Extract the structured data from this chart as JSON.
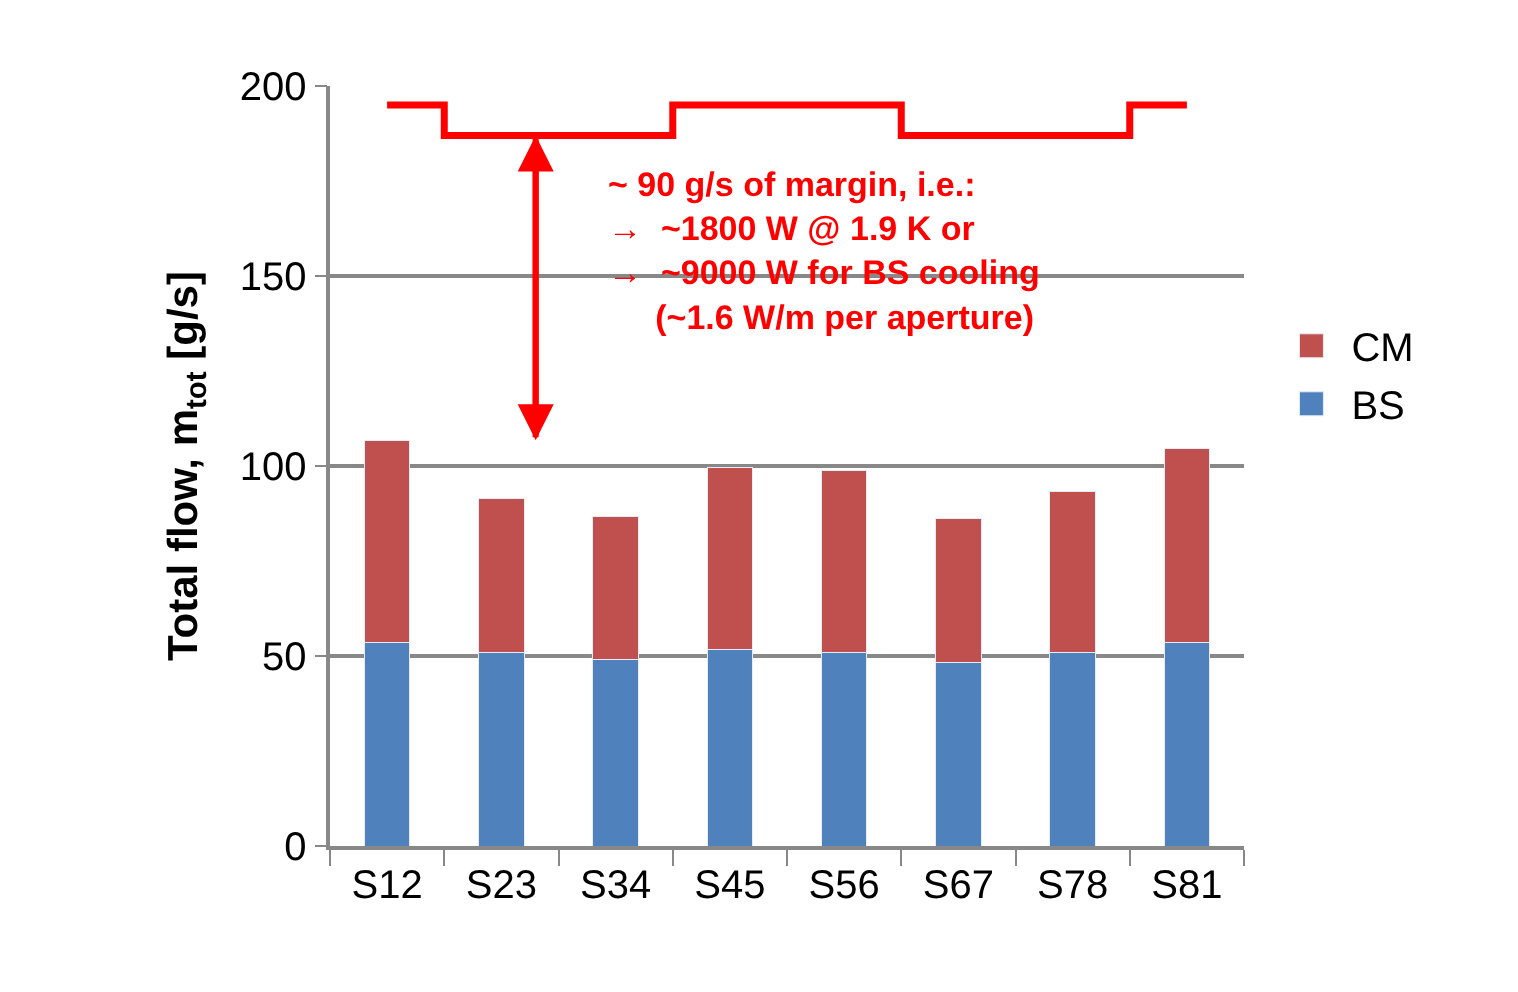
{
  "chart_data": {
    "type": "bar",
    "stacked": true,
    "categories": [
      "S12",
      "S23",
      "S34",
      "S45",
      "S56",
      "S67",
      "S78",
      "S81"
    ],
    "ylabel": "Total flow, m$_{tot}$ [g/s]",
    "ylim": [
      0,
      200
    ],
    "yticks": [
      0,
      50,
      100,
      150,
      200
    ],
    "grid": "y",
    "legend": "right",
    "series": [
      {
        "name": "BS",
        "color": "#4f81bd",
        "values": [
          53.6,
          51.0,
          49.0,
          51.6,
          51.0,
          48.4,
          51.0,
          53.6
        ]
      },
      {
        "name": "CM",
        "color": "#c0504d",
        "values": [
          53.2,
          40.4,
          37.8,
          47.9,
          47.8,
          37.9,
          42.2,
          50.9
        ]
      },
      {
        "type": "step",
        "color": "#ff0000",
        "values": [
          195,
          187,
          187,
          195,
          195,
          187,
          187,
          195
        ]
      }
    ],
    "annotations": [
      "~ 90 g/s of margin, i.e.:\n→  ~1800 W @ 1.9 K or\n→  ~9000 W for BS cooling\n     (~1.6 W/m per aperture)"
    ]
  }
}
